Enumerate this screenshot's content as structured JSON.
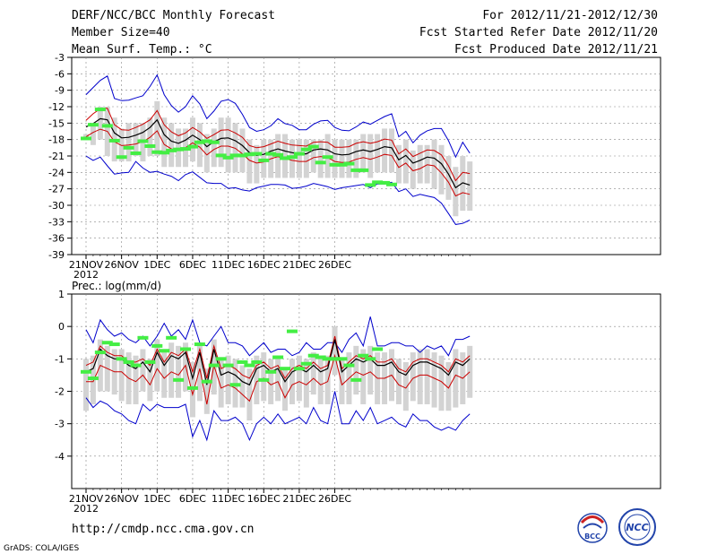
{
  "header": {
    "title": "DERF/NCC/BCC Monthly Forecast",
    "member_size": "Member Size=40",
    "variable": "Mean Surf. Temp.: °C",
    "forecast_period": "For 2012/11/21-2012/12/30",
    "started_date": "Fcst Started Refer Date 2012/11/20",
    "produced_date": "Fcst Produced Date 2012/11/21"
  },
  "footer": {
    "url": "http://cmdp.ncc.cma.gov.cn",
    "grads": "GrADS: COLA/IGES",
    "logo1_text": "BCC",
    "logo2_text": "NCC"
  },
  "colors": {
    "box": "#d3d3d3",
    "median": "#000000",
    "quartile": "#cc0000",
    "extreme": "#0000cc",
    "observed": "#44ee44",
    "grid": "#888888"
  },
  "chart_data": [
    {
      "type": "box-line",
      "title": "Mean Surf. Temp.: °C",
      "ylim": [
        -39,
        -3
      ],
      "yticks": [
        -3,
        -6,
        -9,
        -12,
        -15,
        -18,
        -21,
        -24,
        -27,
        -30,
        -33,
        -36,
        -39
      ],
      "xtick_labels": [
        "21NOV",
        "26NOV",
        "1DEC",
        "6DEC",
        "11DEC",
        "16DEC",
        "21DEC",
        "26DEC"
      ],
      "xtick_year": "2012",
      "series": [
        {
          "name": "max",
          "values": [
            -9.8,
            -8.5,
            -7.2,
            -6.4,
            -10.5,
            -10.9,
            -10.8,
            -10.4,
            -10.0,
            -8.3,
            -6.2,
            -9.8,
            -11.8,
            -13,
            -12,
            -10,
            -11.5,
            -14.2,
            -12.8,
            -11,
            -10.7,
            -11.4,
            -13.4,
            -15.8,
            -16.5,
            -16.2,
            -15.5,
            -14.2,
            -15.1,
            -15.4,
            -16.2,
            -16.2,
            -15.2,
            -14.6,
            -14.5,
            -15.8,
            -16.3,
            -16.4,
            -15.7,
            -14.8,
            -15.2,
            -14.5,
            -13.8,
            -13.3,
            -17.5,
            -16.5,
            -18.6,
            -17.2,
            -16.4,
            -16,
            -16,
            -18.2,
            -21.2,
            -18.5,
            -20.5
          ]
        },
        {
          "name": "q75",
          "values": [
            -14.5,
            -13.3,
            -12.4,
            -12.3,
            -15.3,
            -16.2,
            -16.3,
            -15.8,
            -15.2,
            -14.4,
            -12.7,
            -15.3,
            -16.6,
            -17.3,
            -16.8,
            -15.8,
            -16.6,
            -17.8,
            -17.1,
            -16.3,
            -16.2,
            -16.8,
            -17.6,
            -19.1,
            -19.5,
            -19.3,
            -18.8,
            -18.3,
            -18.7,
            -19,
            -19.1,
            -19.2,
            -18.5,
            -18.4,
            -18.5,
            -19.4,
            -19.4,
            -19.3,
            -18.7,
            -18.4,
            -18.7,
            -18.4,
            -17.9,
            -18.1,
            -20.6,
            -19.7,
            -21.1,
            -20.5,
            -19.9,
            -20,
            -20.8,
            -22.8,
            -25.5,
            -24,
            -24.2
          ]
        },
        {
          "name": "median",
          "values": [
            -15.7,
            -15.1,
            -14.2,
            -14.4,
            -16.8,
            -17.7,
            -17.6,
            -17.2,
            -16.7,
            -15.8,
            -14.4,
            -17.1,
            -18.3,
            -18.7,
            -18.1,
            -17.2,
            -18,
            -19.3,
            -18.4,
            -17.8,
            -17.7,
            -18.2,
            -19.1,
            -20.4,
            -20.9,
            -20.7,
            -20.1,
            -19.7,
            -20.1,
            -20.4,
            -20.6,
            -20.6,
            -19.9,
            -19.7,
            -19.9,
            -20.6,
            -20.8,
            -20.7,
            -20.2,
            -19.9,
            -20.2,
            -19.8,
            -19.3,
            -19.5,
            -21.7,
            -20.9,
            -22.3,
            -21.8,
            -21.2,
            -21.4,
            -22.4,
            -24.3,
            -26.8,
            -25.9,
            -26.3
          ]
        },
        {
          "name": "q25",
          "values": [
            -17.5,
            -16.7,
            -16.1,
            -16.5,
            -18.4,
            -19.1,
            -19,
            -18.8,
            -18.4,
            -17.6,
            -16.4,
            -18.9,
            -19.7,
            -20,
            -19.5,
            -18.6,
            -19.4,
            -20.8,
            -19.8,
            -19.2,
            -19.2,
            -19.6,
            -20.6,
            -21.8,
            -22.3,
            -22.1,
            -21.5,
            -21.1,
            -21.5,
            -21.8,
            -22,
            -22,
            -21.3,
            -21.1,
            -21.3,
            -22,
            -22.2,
            -22.1,
            -21.6,
            -21.3,
            -21.6,
            -21.2,
            -20.7,
            -20.9,
            -23.1,
            -22.3,
            -23.7,
            -23.3,
            -22.6,
            -22.8,
            -24.1,
            -25.8,
            -28.3,
            -27.7,
            -28
          ]
        },
        {
          "name": "min",
          "values": [
            -21,
            -21.8,
            -21.2,
            -22.8,
            -24.3,
            -24.1,
            -24,
            -22,
            -23.2,
            -24,
            -23.8,
            -24.3,
            -24.7,
            -25.5,
            -24.4,
            -23.9,
            -24.9,
            -25.9,
            -26,
            -26,
            -26.9,
            -26.8,
            -27.2,
            -27.4,
            -26.8,
            -26.5,
            -26.2,
            -26.2,
            -26.3,
            -26.9,
            -26.8,
            -26.5,
            -26,
            -26.3,
            -26.6,
            -27.1,
            -26.8,
            -26.6,
            -26.4,
            -26.2,
            -26.8,
            -26.1,
            -26.1,
            -25.8,
            -27.5,
            -27,
            -28.4,
            -28,
            -28.3,
            -28.6,
            -29.6,
            -31.5,
            -33.5,
            -33.3,
            -32.7
          ]
        },
        {
          "name": "box_top",
          "values": [
            -17,
            -15,
            -12,
            -12,
            -14,
            -16,
            -15,
            -15,
            -15,
            -14,
            -11,
            -14,
            -15,
            -16,
            -16,
            -14,
            -15,
            -17,
            -16,
            -14,
            -14,
            -15,
            -16,
            -18,
            -19,
            -18,
            -18,
            -17,
            -17,
            -18,
            -18,
            -18,
            -18,
            -18,
            -17,
            -18,
            -18,
            -18,
            -18,
            -17,
            -17,
            -17,
            -16,
            -16,
            -19,
            -18,
            -20,
            -19,
            -19,
            -18,
            -19,
            -21,
            -23,
            -21,
            -22
          ]
        },
        {
          "name": "box_bottom",
          "values": [
            -18,
            -19,
            -18,
            -21,
            -22,
            -22,
            -22,
            -21,
            -22,
            -21,
            -21,
            -23,
            -23,
            -23,
            -23,
            -22,
            -23,
            -24,
            -23,
            -23,
            -24,
            -24,
            -24,
            -26,
            -26,
            -25,
            -25,
            -25,
            -25,
            -25,
            -25,
            -25,
            -24,
            -25,
            -25,
            -25,
            -25,
            -25,
            -25,
            -24,
            -25,
            -24,
            -24,
            -24,
            -26,
            -26,
            -27,
            -26,
            -26,
            -27,
            -28,
            -29,
            -32,
            -31,
            -31
          ]
        },
        {
          "name": "observed",
          "values": [
            -17.8,
            -15.3,
            -12.5,
            -15.5,
            -18.2,
            -21.2,
            -19.5,
            -20.5,
            -18.3,
            -19.2,
            -20.3,
            -20.4,
            -20,
            -19.8,
            -19.7,
            -19.3,
            -18.5,
            -18.3,
            -18.5,
            -20.9,
            -21.3,
            -20.9,
            -20.9,
            -20.7,
            -20.6,
            -21.8,
            -20.6,
            -20.8,
            -21.4,
            -21.2,
            -20.6,
            -19.8,
            -19.3,
            -22.2,
            -21.2,
            -22.6,
            -22.6,
            -22.4,
            -23.6,
            -23.6,
            -26.3,
            -25.8,
            -25.9,
            -26.2
          ]
        }
      ],
      "note": "observed (green dashes) shown for days 1-44 approx; values estimated from plot"
    },
    {
      "type": "box-line",
      "title": "Prec.: log(mm/d)",
      "ylim": [
        -5,
        1
      ],
      "yticks": [
        1,
        0,
        -1,
        -2,
        -3,
        -4
      ],
      "xtick_labels": [
        "21NOV",
        "26NOV",
        "1DEC",
        "6DEC",
        "11DEC",
        "16DEC",
        "21DEC",
        "26DEC"
      ],
      "xtick_year": "2012",
      "series": [
        {
          "name": "max",
          "values": [
            -0.1,
            -0.5,
            0.2,
            -0.1,
            -0.3,
            -0.2,
            -0.4,
            -0.5,
            -0.3,
            -0.6,
            -0.3,
            0.1,
            -0.3,
            -0.1,
            -0.4,
            0.2,
            -0.5,
            -0.6,
            -0.3,
            0,
            -0.5,
            -0.5,
            -0.6,
            -0.9,
            -0.7,
            -0.5,
            -0.8,
            -0.7,
            -0.7,
            -0.9,
            -0.8,
            -0.5,
            -0.7,
            -0.7,
            -0.5,
            -0.5,
            -0.8,
            -0.4,
            -0.2,
            -0.6,
            0.3,
            -0.6,
            -0.6,
            -0.5,
            -0.5,
            -0.6,
            -0.6,
            -0.8,
            -0.6,
            -0.7,
            -0.6,
            -0.9,
            -0.4,
            -0.4,
            -0.3
          ]
        },
        {
          "name": "q75",
          "values": [
            -1.2,
            -1.1,
            -0.6,
            -0.8,
            -0.9,
            -0.9,
            -1.1,
            -1.1,
            -1.0,
            -1.2,
            -0.7,
            -1.1,
            -0.8,
            -0.9,
            -0.7,
            -1.4,
            -0.7,
            -1.6,
            -0.6,
            -1.3,
            -1.2,
            -1.3,
            -1.5,
            -1.6,
            -1.2,
            -1.1,
            -1.3,
            -1.2,
            -1.6,
            -1.3,
            -1.2,
            -1.3,
            -1.1,
            -1.3,
            -1.2,
            -0.3,
            -1.3,
            -1.1,
            -0.9,
            -1.0,
            -0.9,
            -1.1,
            -1.1,
            -1.0,
            -1.3,
            -1.4,
            -1.1,
            -1.0,
            -1.0,
            -1.1,
            -1.2,
            -1.4,
            -1.0,
            -1.1,
            -0.9
          ]
        },
        {
          "name": "median",
          "values": [
            -1.4,
            -1.3,
            -0.7,
            -0.9,
            -1.0,
            -1.0,
            -1.2,
            -1.3,
            -1.1,
            -1.4,
            -0.8,
            -1.2,
            -0.9,
            -1.0,
            -0.8,
            -1.6,
            -0.8,
            -1.8,
            -0.7,
            -1.5,
            -1.4,
            -1.5,
            -1.7,
            -1.8,
            -1.3,
            -1.2,
            -1.4,
            -1.3,
            -1.7,
            -1.4,
            -1.3,
            -1.4,
            -1.2,
            -1.4,
            -1.3,
            -0.4,
            -1.4,
            -1.2,
            -1.0,
            -1.1,
            -1.0,
            -1.2,
            -1.2,
            -1.1,
            -1.4,
            -1.5,
            -1.2,
            -1.1,
            -1.1,
            -1.2,
            -1.3,
            -1.5,
            -1.1,
            -1.2,
            -1.0
          ]
        },
        {
          "name": "q25",
          "values": [
            -1.7,
            -1.7,
            -1.2,
            -1.3,
            -1.4,
            -1.4,
            -1.6,
            -1.7,
            -1.5,
            -1.8,
            -1.3,
            -1.6,
            -1.4,
            -1.5,
            -1.2,
            -2.1,
            -1.3,
            -2.4,
            -1.2,
            -1.9,
            -1.8,
            -1.9,
            -2.1,
            -2.3,
            -1.7,
            -1.6,
            -1.8,
            -1.7,
            -2.2,
            -1.8,
            -1.7,
            -1.8,
            -1.6,
            -1.8,
            -1.7,
            -0.9,
            -1.8,
            -1.6,
            -1.4,
            -1.5,
            -1.4,
            -1.6,
            -1.6,
            -1.5,
            -1.8,
            -1.9,
            -1.6,
            -1.5,
            -1.5,
            -1.6,
            -1.7,
            -1.9,
            -1.5,
            -1.6,
            -1.4
          ]
        },
        {
          "name": "min",
          "values": [
            -2.2,
            -2.5,
            -2.3,
            -2.4,
            -2.6,
            -2.7,
            -2.9,
            -3.0,
            -2.4,
            -2.6,
            -2.4,
            -2.5,
            -2.5,
            -2.5,
            -2.4,
            -3.4,
            -2.9,
            -3.5,
            -2.6,
            -2.9,
            -2.9,
            -2.8,
            -3.0,
            -3.5,
            -3.0,
            -2.8,
            -3.0,
            -2.7,
            -3.0,
            -2.9,
            -2.8,
            -3.0,
            -2.5,
            -2.9,
            -3.0,
            -2.0,
            -3.0,
            -3.0,
            -2.6,
            -2.9,
            -2.5,
            -3.0,
            -2.9,
            -2.8,
            -3.0,
            -3.1,
            -2.7,
            -2.9,
            -2.9,
            -3.1,
            -3.2,
            -3.1,
            -3.2,
            -2.9,
            -2.7
          ]
        },
        {
          "name": "box_top",
          "values": [
            -1.0,
            -0.9,
            -0.4,
            -0.6,
            -0.7,
            -0.7,
            -0.8,
            -0.9,
            -0.7,
            -1.0,
            -0.4,
            -0.8,
            -0.5,
            -0.6,
            -0.5,
            -1.1,
            -0.6,
            -1.3,
            -0.4,
            -1.0,
            -0.9,
            -1.0,
            -1.2,
            -1.3,
            -0.9,
            -0.8,
            -1.0,
            -0.9,
            -1.3,
            -1.0,
            -0.9,
            -1.0,
            -0.8,
            -1.0,
            -0.9,
            0.0,
            -1.0,
            -0.8,
            -0.6,
            -0.7,
            -0.6,
            -0.8,
            -0.8,
            -0.7,
            -1.0,
            -1.1,
            -0.8,
            -0.7,
            -0.7,
            -0.8,
            -0.9,
            -1.1,
            -0.7,
            -0.8,
            -0.6
          ]
        },
        {
          "name": "box_bottom",
          "values": [
            -2.6,
            -2.4,
            -2.0,
            -2.0,
            -2.1,
            -2.3,
            -2.4,
            -2.4,
            -2.0,
            -2.3,
            -2.0,
            -2.2,
            -2.2,
            -2.2,
            -2.0,
            -2.8,
            -2.3,
            -2.7,
            -2.1,
            -2.5,
            -2.4,
            -2.5,
            -2.5,
            -2.9,
            -2.4,
            -2.3,
            -2.4,
            -2.3,
            -2.6,
            -2.4,
            -2.3,
            -2.5,
            -2.1,
            -2.4,
            -2.4,
            -1.5,
            -2.4,
            -2.4,
            -2.1,
            -2.4,
            -2.1,
            -2.4,
            -2.4,
            -2.3,
            -2.4,
            -2.6,
            -2.3,
            -2.4,
            -2.4,
            -2.5,
            -2.6,
            -2.6,
            -2.5,
            -2.4,
            -2.2
          ]
        },
        {
          "name": "observed",
          "values": [
            -1.4,
            -1.6,
            -0.8,
            -0.5,
            -0.55,
            -1.0,
            -1.1,
            -1.2,
            -0.35,
            -1.1,
            -0.6,
            -0.75,
            -0.35,
            -1.65,
            -0.7,
            -1.9,
            -0.55,
            -1.7,
            -1.2,
            -1.0,
            -1.2,
            -1.8,
            -1.1,
            -1.2,
            -1.1,
            -1.65,
            -1.4,
            -0.95,
            -1.3,
            -0.15,
            -1.3,
            -1.15,
            -0.9,
            -0.95,
            -1.0,
            -1.0,
            -1.0,
            -1.2,
            -1.65,
            -0.9,
            -1.0,
            -0.7
          ]
        }
      ]
    }
  ]
}
